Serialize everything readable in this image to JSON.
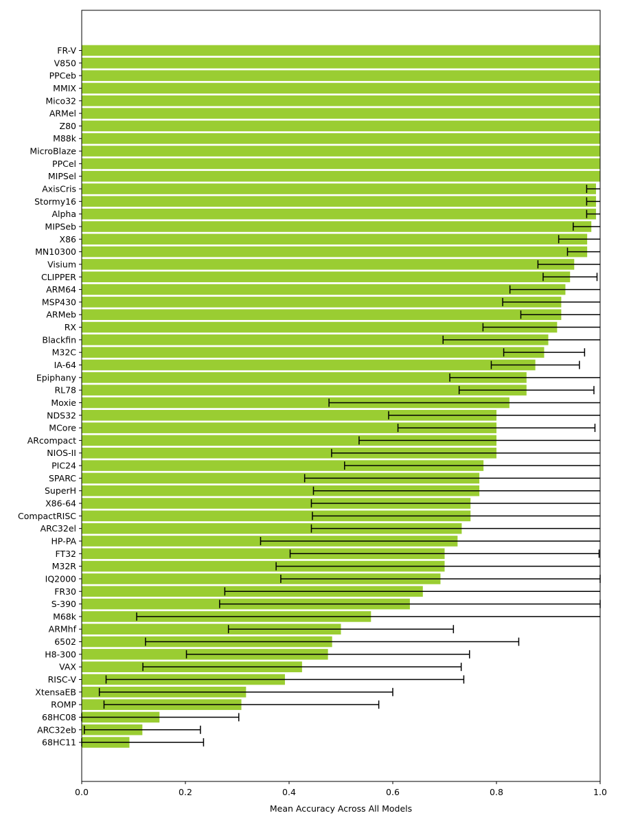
{
  "chart_data": {
    "type": "bar",
    "orientation": "horizontal",
    "xlabel": "Mean Accuracy Across All Models",
    "ylabel": "",
    "title": "",
    "xlim": [
      0,
      1.0
    ],
    "xticks": [
      "0.0",
      "0.2",
      "0.4",
      "0.6",
      "0.8",
      "1.0"
    ],
    "bar_color": "#9acd32",
    "grid": false,
    "categories": [
      "FR-V",
      "V850",
      "PPCeb",
      "MMIX",
      "Mico32",
      "ARMel",
      "Z80",
      "M88k",
      "MicroBlaze",
      "PPCel",
      "MIPSel",
      "AxisCris",
      "Stormy16",
      "Alpha",
      "MIPSeb",
      "X86",
      "MN10300",
      "Visium",
      "CLIPPER",
      "ARM64",
      "MSP430",
      "ARMeb",
      "RX",
      "Blackfin",
      "M32C",
      "IA-64",
      "Epiphany",
      "RL78",
      "Moxie",
      "NDS32",
      "MCore",
      "ARcompact",
      "NIOS-II",
      "PIC24",
      "SPARC",
      "SuperH",
      "X86-64",
      "CompactRISC",
      "ARC32el",
      "HP-PA",
      "FT32",
      "M32R",
      "IQ2000",
      "FR30",
      "S-390",
      "M68k",
      "ARMhf",
      "6502",
      "H8-300",
      "VAX",
      "RISC-V",
      "XtensaEB",
      "ROMP",
      "68HC08",
      "ARC32eb",
      "68HC11"
    ],
    "values": [
      1.0,
      1.0,
      1.0,
      1.0,
      1.0,
      1.0,
      1.0,
      1.0,
      1.0,
      1.0,
      1.0,
      0.992,
      0.992,
      0.992,
      0.983,
      0.975,
      0.975,
      0.95,
      0.942,
      0.933,
      0.925,
      0.925,
      0.917,
      0.9,
      0.892,
      0.875,
      0.858,
      0.858,
      0.825,
      0.8,
      0.8,
      0.8,
      0.8,
      0.775,
      0.767,
      0.767,
      0.75,
      0.75,
      0.733,
      0.725,
      0.7,
      0.7,
      0.692,
      0.658,
      0.633,
      0.558,
      0.5,
      0.483,
      0.475,
      0.425,
      0.392,
      0.317,
      0.308,
      0.15,
      0.117,
      0.092
    ],
    "errors": [
      0,
      0,
      0,
      0,
      0,
      0,
      0,
      0,
      0,
      0,
      0,
      0.018,
      0.018,
      0.018,
      0.035,
      0.055,
      0.038,
      0.07,
      0.052,
      0.107,
      0.113,
      0.078,
      0.143,
      0.203,
      0.078,
      0.085,
      0.148,
      0.13,
      0.348,
      0.208,
      0.19,
      0.265,
      0.318,
      0.268,
      0.337,
      0.32,
      0.307,
      0.305,
      0.29,
      0.38,
      0.298,
      0.325,
      0.308,
      0.382,
      0.367,
      0.452,
      0.217,
      0.36,
      0.273,
      0.307,
      0.345,
      0.283,
      0.265,
      0.153,
      0.112,
      0.143
    ]
  }
}
